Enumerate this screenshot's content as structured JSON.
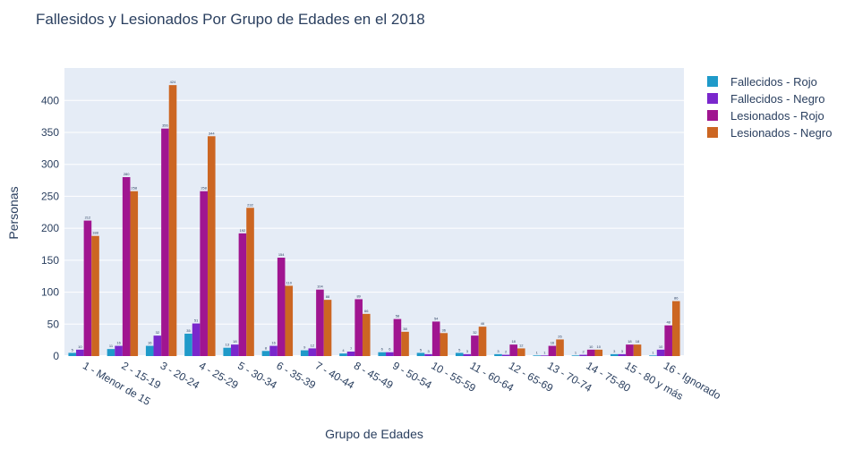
{
  "chart_data": {
    "type": "bar",
    "title": "Fallesidos y Lesionados Por Grupo de Edades en el 2018",
    "xlabel": "Grupo de Edades",
    "ylabel": "Personas",
    "ylim": [
      0,
      440
    ],
    "yticks": [
      0,
      50,
      100,
      150,
      200,
      250,
      300,
      350,
      400
    ],
    "grid": true,
    "legend_position": "top-right",
    "categories": [
      "1 - Menor de 15",
      "2 - 15-19",
      "3 - 20-24",
      "4 - 25-29",
      "5 - 30-34",
      "6 - 35-39",
      "7 - 40-44",
      "8 - 45-49",
      "9 - 50-54",
      "10 - 55-59",
      "11 - 60-64",
      "12 - 65-69",
      "13 - 70-74",
      "14 - 75-80",
      "15 - 80 y más",
      "16 - Ignorado"
    ],
    "series": [
      {
        "name": "Fallecidos - Rojo",
        "color": "#1f9ac9",
        "values": [
          5,
          11,
          16,
          35,
          13,
          8,
          9,
          4,
          6,
          5,
          5,
          3,
          1,
          1,
          3,
          1
        ]
      },
      {
        "name": "Fallecidos - Negro",
        "color": "#7a27cc",
        "values": [
          10,
          16,
          32,
          51,
          18,
          16,
          12,
          7,
          6,
          3,
          3,
          2,
          1,
          2,
          3,
          10
        ]
      },
      {
        "name": "Lesionados - Rojo",
        "color": "#a01590",
        "values": [
          212,
          280,
          356,
          258,
          192,
          154,
          104,
          89,
          58,
          54,
          32,
          18,
          16,
          10,
          18,
          48
        ]
      },
      {
        "name": "Lesionados - Negro",
        "color": "#cc6622",
        "values": [
          188,
          258,
          424,
          344,
          232,
          110,
          88,
          66,
          38,
          36,
          46,
          12,
          26,
          10,
          18,
          86
        ]
      }
    ]
  }
}
